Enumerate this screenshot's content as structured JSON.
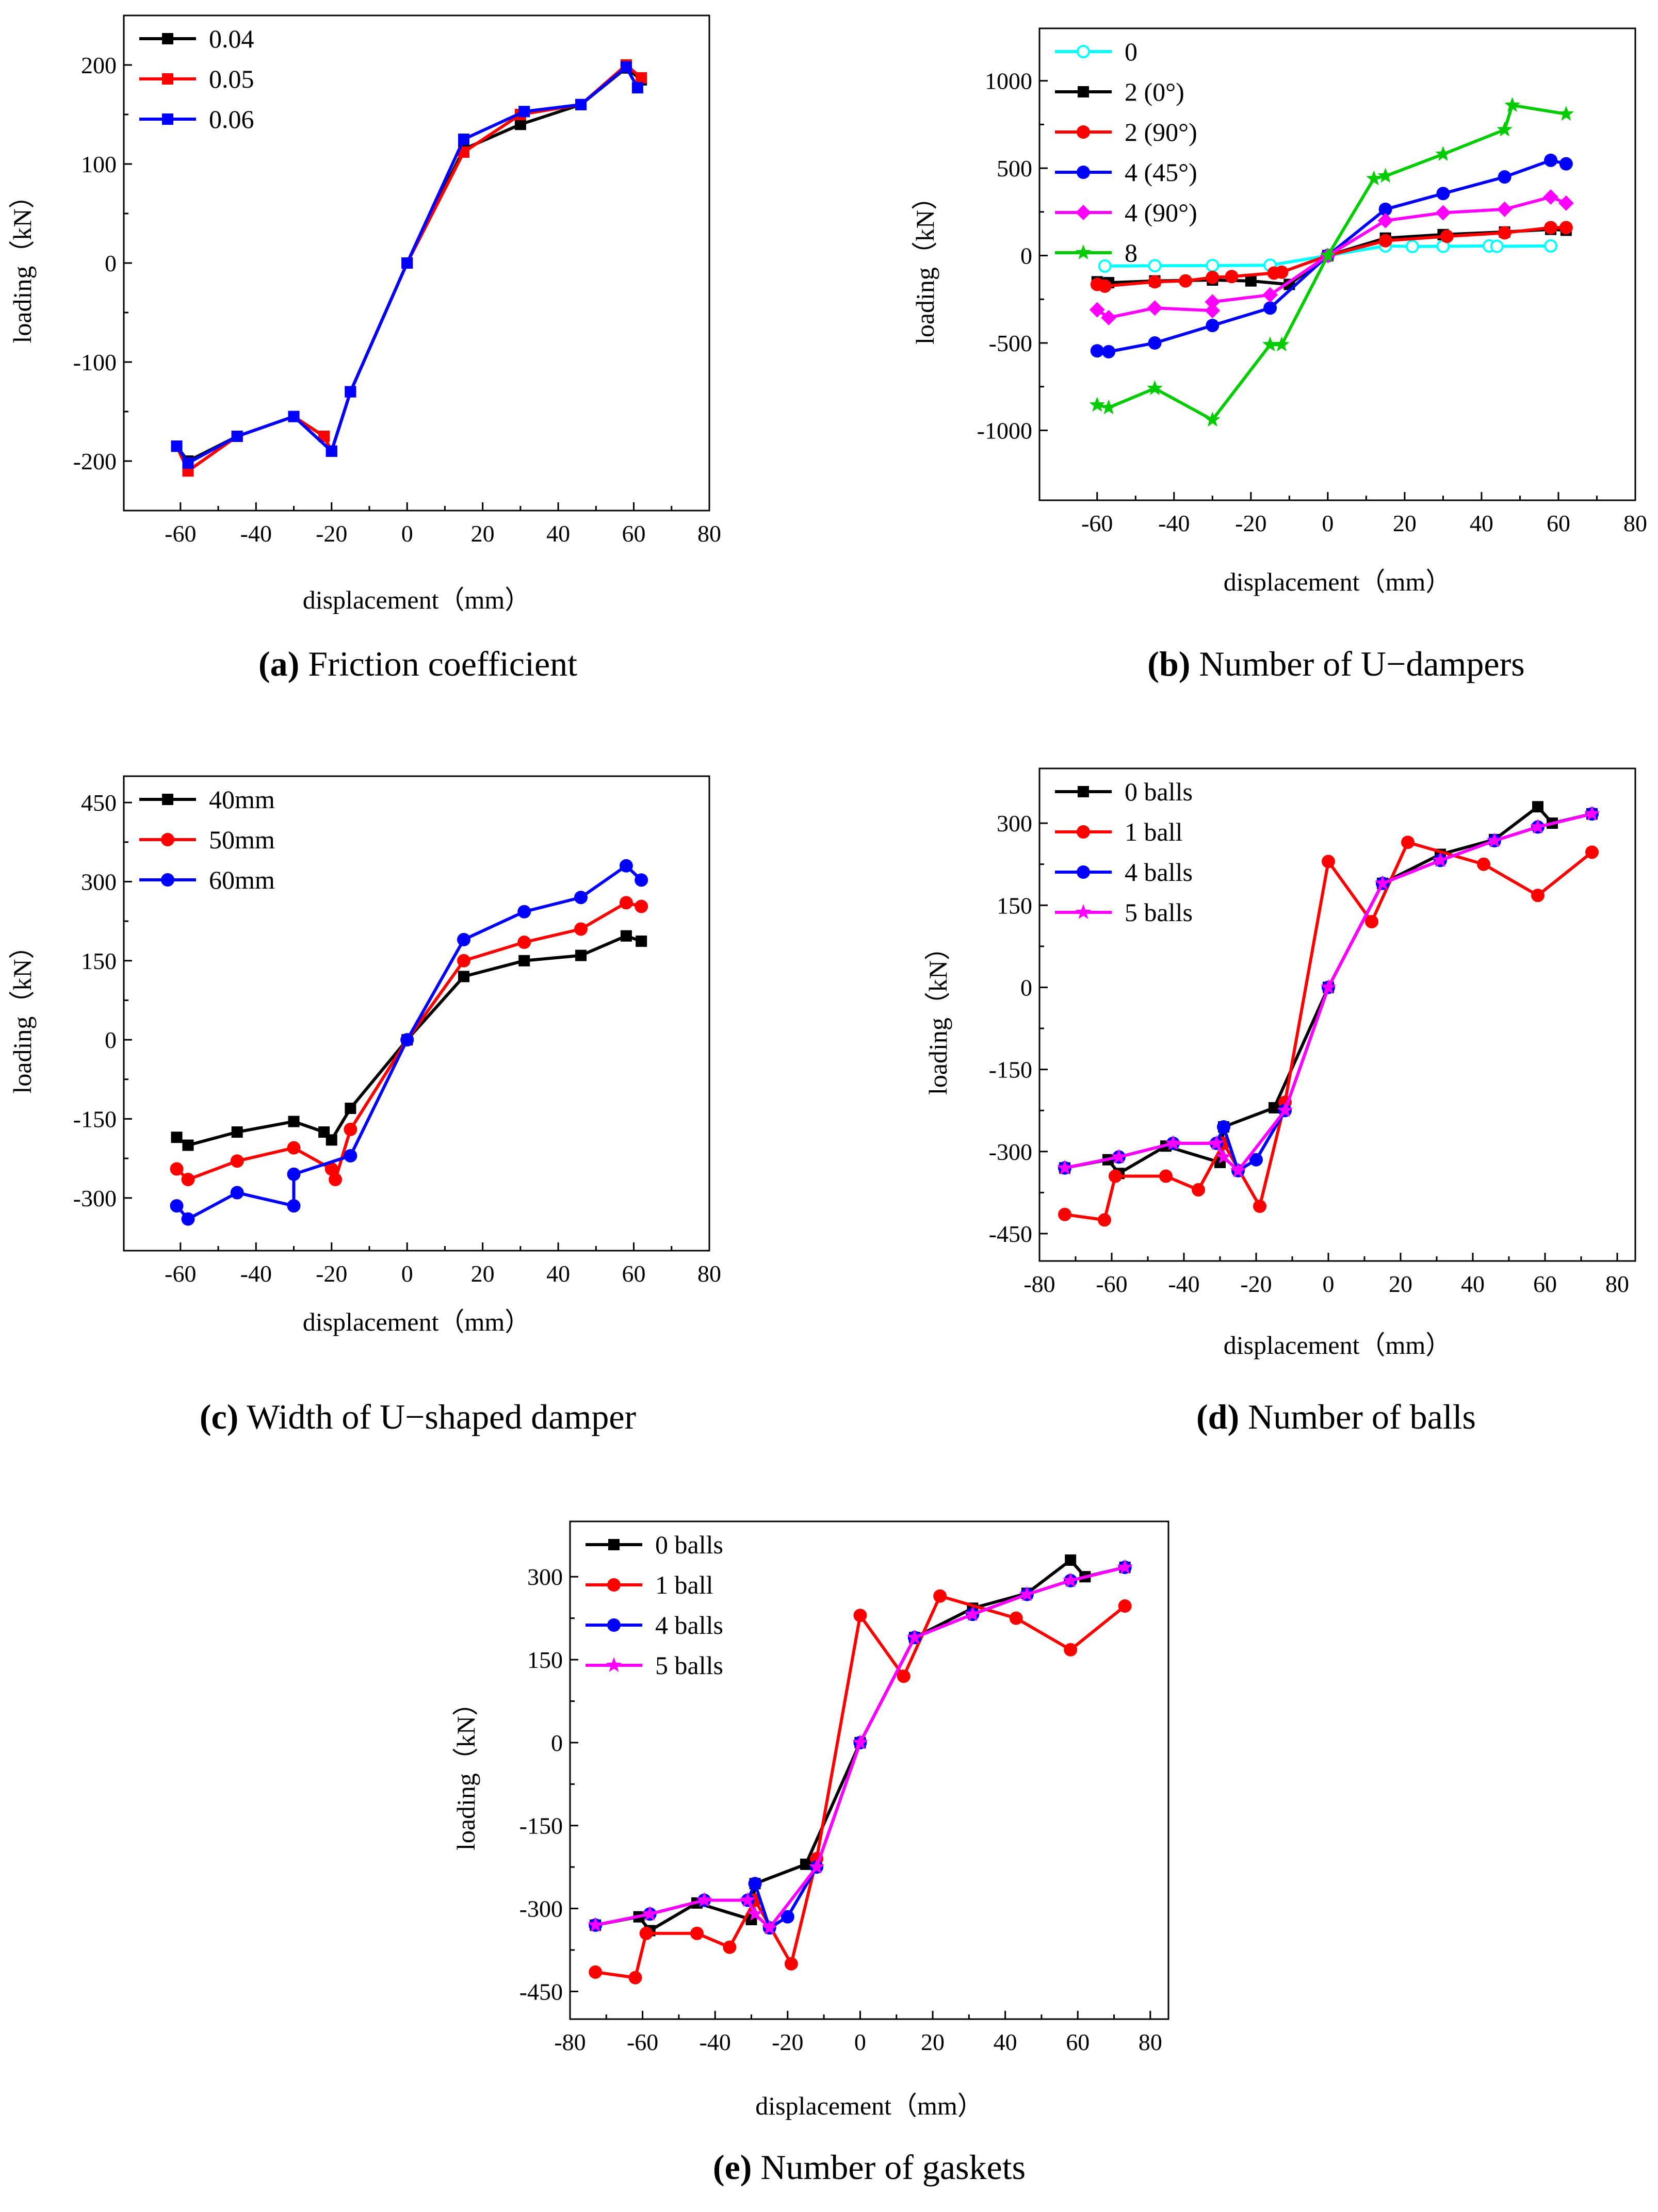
{
  "chart_data": [
    {
      "id": "a",
      "type": "line",
      "caption_letter": "(a)",
      "caption_text": " Friction coefficient",
      "xlabel": "displacement（mm）",
      "ylabel": "loading（kN）",
      "xlim": [
        -75,
        80
      ],
      "ylim": [
        -250,
        250
      ],
      "xticks": [
        -60,
        -40,
        -20,
        0,
        20,
        40,
        60,
        80
      ],
      "yticks": [
        -200,
        -100,
        0,
        100,
        200
      ],
      "xtick_labels": [
        "-60",
        "-40",
        "-20",
        "0",
        "20",
        "40",
        "60",
        "80"
      ],
      "ytick_labels": [
        "-200",
        "-100",
        "0",
        "100",
        "200"
      ],
      "legend_position": "top-left",
      "series": [
        {
          "name": "0.04",
          "color": "#000000",
          "marker": "square",
          "x": [
            -61,
            -58,
            -45,
            -30,
            -22,
            -20,
            -15,
            0,
            15,
            30,
            46,
            58,
            62
          ],
          "y": [
            -185,
            -200,
            -175,
            -155,
            -175,
            -190,
            -130,
            0,
            115,
            140,
            160,
            197,
            185
          ]
        },
        {
          "name": "0.05",
          "color": "#ff0000",
          "marker": "square",
          "x": [
            -61,
            -58,
            -45,
            -30,
            -22,
            -20,
            -15,
            0,
            15,
            30,
            46,
            58,
            62
          ],
          "y": [
            -185,
            -210,
            -175,
            -155,
            -175,
            -190,
            -130,
            0,
            112,
            150,
            160,
            200,
            187
          ]
        },
        {
          "name": "0.06",
          "color": "#0000ff",
          "marker": "square",
          "x": [
            -61,
            -58,
            -45,
            -30,
            -20,
            -15,
            0,
            15,
            31,
            46,
            58,
            61
          ],
          "y": [
            -185,
            -202,
            -175,
            -155,
            -190,
            -130,
            0,
            125,
            153,
            160,
            198,
            177
          ]
        }
      ]
    },
    {
      "id": "b",
      "type": "line",
      "caption_letter": "(b)",
      "caption_text": " Number of U−dampers",
      "xlabel": "displacement（mm）",
      "ylabel": "loading（kN）",
      "xlim": [
        -75,
        80
      ],
      "ylim": [
        -1400,
        1300
      ],
      "xticks": [
        -60,
        -40,
        -20,
        0,
        20,
        40,
        60,
        80
      ],
      "yticks": [
        -1000,
        -500,
        0,
        500,
        1000
      ],
      "xtick_labels": [
        "-60",
        "-40",
        "-20",
        "0",
        "20",
        "40",
        "60",
        "80"
      ],
      "ytick_labels": [
        "-1000",
        "-500",
        "0",
        "500",
        "1000"
      ],
      "legend_position": "top-left",
      "series": [
        {
          "name": "0",
          "color": "#00ffff",
          "marker": "circle-open",
          "x": [
            -58,
            -45,
            -30,
            -15,
            0,
            15,
            22,
            30,
            42,
            44,
            58
          ],
          "y": [
            -60,
            -58,
            -57,
            -55,
            0,
            55,
            52,
            53,
            55,
            53,
            55
          ]
        },
        {
          "name": "2 (0°)",
          "color": "#000000",
          "marker": "square",
          "x": [
            -60,
            -57,
            -45,
            -30,
            -20,
            -10,
            0,
            15,
            30,
            46,
            58,
            62
          ],
          "y": [
            -150,
            -155,
            -145,
            -140,
            -145,
            -165,
            0,
            100,
            120,
            135,
            150,
            145
          ]
        },
        {
          "name": "2 (90°)",
          "color": "#ff0000",
          "marker": "circle",
          "x": [
            -60,
            -58,
            -45,
            -37,
            -30,
            -25,
            -14,
            -12,
            0,
            15,
            31,
            46,
            58,
            62
          ],
          "y": [
            -165,
            -175,
            -150,
            -145,
            -125,
            -120,
            -100,
            -95,
            0,
            85,
            110,
            130,
            160,
            160
          ]
        },
        {
          "name": "4 (45°)",
          "color": "#0000ff",
          "marker": "circle",
          "x": [
            -60,
            -57,
            -45,
            -30,
            -15,
            0,
            15,
            30,
            46,
            58,
            62
          ],
          "y": [
            -545,
            -550,
            -500,
            -400,
            -300,
            0,
            265,
            355,
            450,
            545,
            525
          ]
        },
        {
          "name": "4 (90°)",
          "color": "#ff00ff",
          "marker": "diamond",
          "x": [
            -60,
            -57,
            -45,
            -30,
            -30,
            -15,
            0,
            15,
            30,
            46,
            58,
            62
          ],
          "y": [
            -310,
            -355,
            -300,
            -315,
            -265,
            -225,
            0,
            200,
            245,
            265,
            335,
            300
          ]
        },
        {
          "name": "8",
          "color": "#00cc00",
          "marker": "star",
          "x": [
            -60,
            -57,
            -45,
            -30,
            -15,
            -12,
            0,
            12,
            15,
            30,
            46,
            48,
            62
          ],
          "y": [
            -855,
            -870,
            -760,
            -940,
            -510,
            -510,
            0,
            440,
            455,
            580,
            720,
            860,
            810
          ]
        }
      ]
    },
    {
      "id": "c",
      "type": "line",
      "caption_letter": "(c)",
      "caption_text": " Width of U−shaped damper",
      "xlabel": "displacement（mm）",
      "ylabel": "loading（kN）",
      "xlim": [
        -75,
        80
      ],
      "ylim": [
        -400,
        500
      ],
      "xticks": [
        -60,
        -40,
        -20,
        0,
        20,
        40,
        60,
        80
      ],
      "yticks": [
        -300,
        -150,
        0,
        150,
        300,
        450
      ],
      "xtick_labels": [
        "-60",
        "-40",
        "-20",
        "0",
        "20",
        "40",
        "60",
        "80"
      ],
      "ytick_labels": [
        "-300",
        "-150",
        "0",
        "150",
        "300",
        "450"
      ],
      "legend_position": "top-left",
      "series": [
        {
          "name": "40mm",
          "color": "#000000",
          "marker": "square",
          "x": [
            -61,
            -58,
            -45,
            -30,
            -22,
            -20,
            -15,
            0,
            15,
            31,
            46,
            58,
            62
          ],
          "y": [
            -185,
            -200,
            -175,
            -155,
            -175,
            -190,
            -130,
            0,
            120,
            150,
            160,
            197,
            187
          ]
        },
        {
          "name": "50mm",
          "color": "#ff0000",
          "marker": "circle",
          "x": [
            -61,
            -58,
            -45,
            -30,
            -20,
            -19,
            -15,
            0,
            15,
            31,
            46,
            58,
            62
          ],
          "y": [
            -245,
            -265,
            -230,
            -205,
            -245,
            -265,
            -170,
            0,
            150,
            185,
            210,
            260,
            253
          ]
        },
        {
          "name": "60mm",
          "color": "#0000ff",
          "marker": "circle",
          "x": [
            -61,
            -58,
            -45,
            -30,
            -30,
            -15,
            0,
            15,
            31,
            46,
            58,
            62
          ],
          "y": [
            -315,
            -340,
            -290,
            -315,
            -255,
            -220,
            0,
            190,
            243,
            270,
            330,
            303
          ]
        }
      ]
    },
    {
      "id": "d",
      "type": "line",
      "caption_letter": "(d)",
      "caption_text": " Number of balls",
      "xlabel": "displacement（mm）",
      "ylabel": "loading（kN）",
      "xlim": [
        -80,
        85
      ],
      "ylim": [
        -500,
        400
      ],
      "xticks": [
        -80,
        -60,
        -40,
        -20,
        0,
        20,
        40,
        60,
        80
      ],
      "yticks": [
        -450,
        -300,
        -150,
        0,
        150,
        300
      ],
      "xtick_labels": [
        "-80",
        "-60",
        "-40",
        "-20",
        "0",
        "20",
        "40",
        "60",
        "80"
      ],
      "ytick_labels": [
        "-450",
        "-300",
        "-150",
        "0",
        "150",
        "300"
      ],
      "legend_position": "top-left",
      "series": [
        {
          "name": "0 balls",
          "color": "#000000",
          "marker": "square",
          "x": [
            -73,
            -61,
            -58,
            -45,
            -30,
            -29,
            -15,
            0,
            15,
            31,
            46,
            58,
            62,
            73
          ],
          "y": [
            -330,
            -315,
            -340,
            -290,
            -320,
            -255,
            -220,
            0,
            190,
            243,
            270,
            330,
            300,
            317
          ]
        },
        {
          "name": "1 ball",
          "color": "#ff0000",
          "marker": "circle",
          "x": [
            -73,
            -62,
            -59,
            -45,
            -36,
            -29,
            -19,
            -12,
            0,
            12,
            22,
            43,
            58,
            73
          ],
          "y": [
            -415,
            -425,
            -345,
            -345,
            -370,
            -285,
            -400,
            -210,
            230,
            120,
            265,
            225,
            168,
            247
          ]
        },
        {
          "name": "4 balls",
          "color": "#0000ff",
          "marker": "circle",
          "x": [
            -73,
            -58,
            -43,
            -31,
            -29,
            -25,
            -20,
            -12,
            0,
            15,
            31,
            46,
            58,
            73
          ],
          "y": [
            -330,
            -310,
            -285,
            -285,
            -255,
            -335,
            -315,
            -225,
            0,
            190,
            232,
            268,
            293,
            317
          ]
        },
        {
          "name": "5 balls",
          "color": "#ff00ff",
          "marker": "star",
          "x": [
            -73,
            -58,
            -43,
            -31,
            -29,
            -25,
            -12,
            0,
            15,
            31,
            46,
            58,
            73
          ],
          "y": [
            -330,
            -310,
            -285,
            -285,
            -310,
            -335,
            -225,
            0,
            190,
            232,
            268,
            293,
            317
          ]
        }
      ]
    },
    {
      "id": "e",
      "type": "line",
      "caption_letter": "(e)",
      "caption_text": " Number of gaskets",
      "xlabel": "displacement（mm）",
      "ylabel": "loading（kN）",
      "xlim": [
        -80,
        85
      ],
      "ylim": [
        -500,
        400
      ],
      "xticks": [
        -80,
        -60,
        -40,
        -20,
        0,
        20,
        40,
        60,
        80
      ],
      "yticks": [
        -450,
        -300,
        -150,
        0,
        150,
        300
      ],
      "xtick_labels": [
        "-80",
        "-60",
        "-40",
        "-20",
        "0",
        "20",
        "40",
        "60",
        "80"
      ],
      "ytick_labels": [
        "-450",
        "-300",
        "-150",
        "0",
        "150",
        "300"
      ],
      "legend_position": "top-left",
      "series": [
        {
          "name": "0 balls",
          "color": "#000000",
          "marker": "square",
          "x": [
            -73,
            -61,
            -58,
            -45,
            -30,
            -29,
            -15,
            0,
            15,
            31,
            46,
            58,
            62,
            73
          ],
          "y": [
            -330,
            -315,
            -340,
            -290,
            -320,
            -255,
            -220,
            0,
            190,
            243,
            270,
            330,
            300,
            317
          ]
        },
        {
          "name": "1 ball",
          "color": "#ff0000",
          "marker": "circle",
          "x": [
            -73,
            -62,
            -59,
            -45,
            -36,
            -29,
            -19,
            -12,
            0,
            12,
            22,
            43,
            58,
            73
          ],
          "y": [
            -415,
            -425,
            -345,
            -345,
            -370,
            -285,
            -400,
            -210,
            230,
            120,
            265,
            225,
            168,
            247
          ]
        },
        {
          "name": "4 balls",
          "color": "#0000ff",
          "marker": "circle",
          "x": [
            -73,
            -58,
            -43,
            -31,
            -29,
            -25,
            -20,
            -12,
            0,
            15,
            31,
            46,
            58,
            73
          ],
          "y": [
            -330,
            -310,
            -285,
            -285,
            -255,
            -335,
            -315,
            -225,
            0,
            190,
            232,
            268,
            293,
            317
          ]
        },
        {
          "name": "5 balls",
          "color": "#ff00ff",
          "marker": "star",
          "x": [
            -73,
            -58,
            -43,
            -31,
            -29,
            -25,
            -12,
            0,
            15,
            31,
            46,
            58,
            73
          ],
          "y": [
            -330,
            -310,
            -285,
            -285,
            -310,
            -335,
            -225,
            0,
            190,
            232,
            268,
            293,
            317
          ]
        }
      ]
    }
  ]
}
